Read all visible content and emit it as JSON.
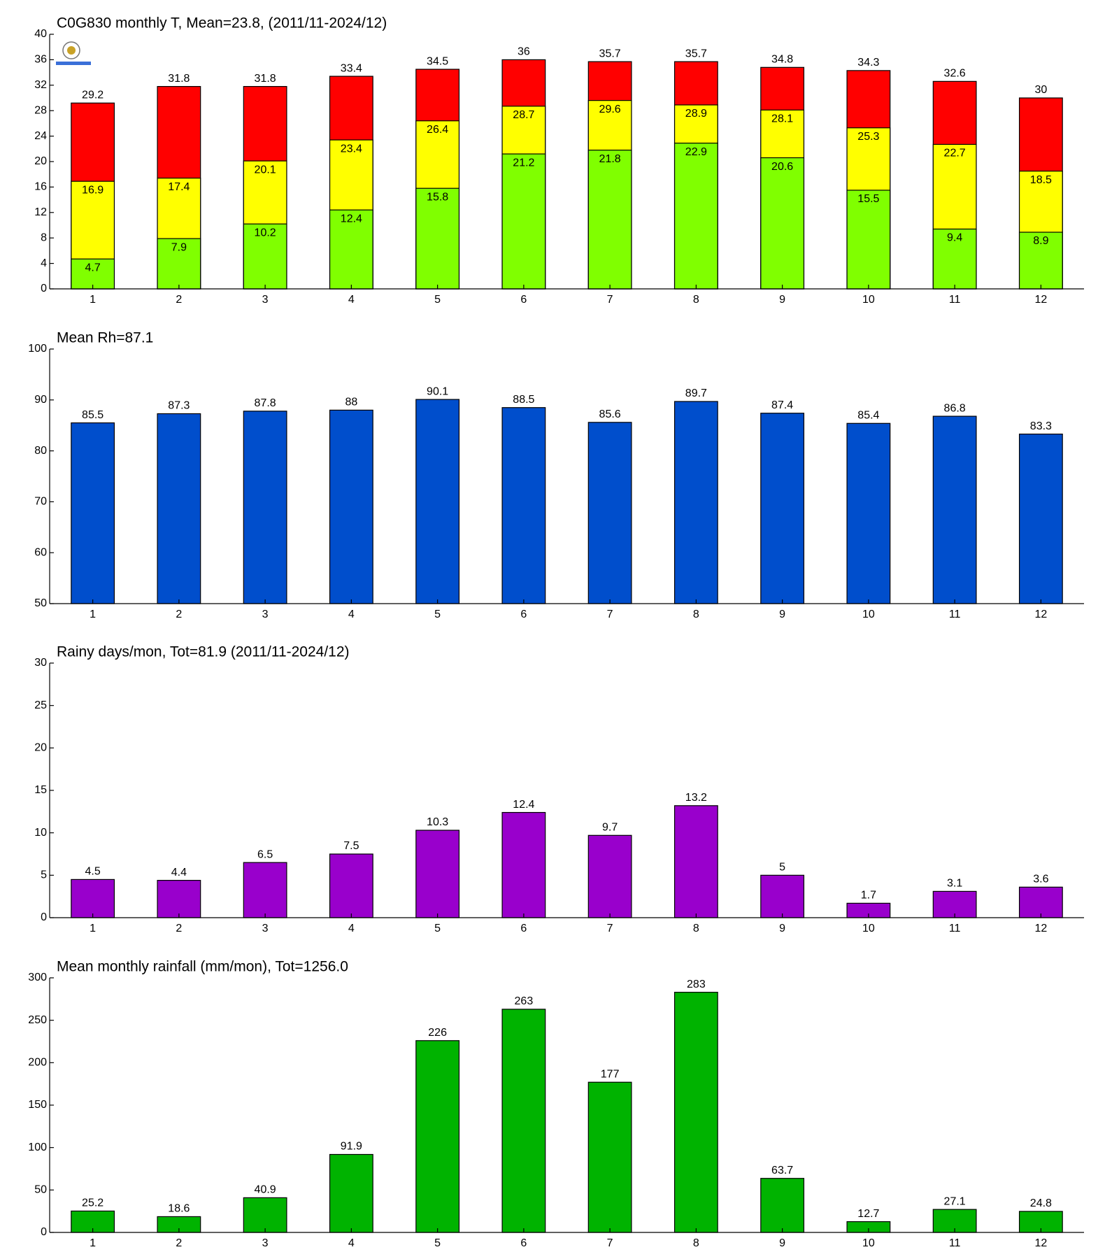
{
  "chart_data": [
    {
      "type": "overlap_bar",
      "title": "C0G830 monthly T, Mean=23.8, (2011/11-2024/12)",
      "categories": [
        "1",
        "2",
        "3",
        "4",
        "5",
        "6",
        "7",
        "8",
        "9",
        "10",
        "11",
        "12"
      ],
      "series": [
        {
          "color": "#ff0000",
          "values": [
            29.2,
            31.8,
            31.8,
            33.4,
            34.5,
            36,
            35.7,
            35.7,
            34.8,
            34.3,
            32.6,
            30
          ]
        },
        {
          "color": "#ffff00",
          "values": [
            16.9,
            17.4,
            20.1,
            23.4,
            26.4,
            28.7,
            29.6,
            28.9,
            28.1,
            25.3,
            22.7,
            18.5
          ]
        },
        {
          "color": "#80ff00",
          "values": [
            4.7,
            7.9,
            10.2,
            12.4,
            15.8,
            21.2,
            21.8,
            22.9,
            20.6,
            15.5,
            9.4,
            8.9
          ]
        }
      ],
      "ylim": [
        0,
        40
      ],
      "yticks": [
        0,
        4,
        8,
        12,
        16,
        20,
        24,
        28,
        32,
        36,
        40
      ]
    },
    {
      "type": "bar",
      "title": "Mean Rh=87.1",
      "categories": [
        "1",
        "2",
        "3",
        "4",
        "5",
        "6",
        "7",
        "8",
        "9",
        "10",
        "11",
        "12"
      ],
      "values": [
        85.5,
        87.3,
        87.8,
        88,
        90.1,
        88.5,
        85.6,
        89.7,
        87.4,
        85.4,
        86.8,
        83.3
      ],
      "color": "#004ecc",
      "ylim": [
        50,
        100
      ],
      "yticks": [
        50,
        60,
        70,
        80,
        90,
        100
      ]
    },
    {
      "type": "bar",
      "title": "Rainy days/mon, Tot=81.9 (2011/11-2024/12)",
      "categories": [
        "1",
        "2",
        "3",
        "4",
        "5",
        "6",
        "7",
        "8",
        "9",
        "10",
        "11",
        "12"
      ],
      "values": [
        4.5,
        4.4,
        6.5,
        7.5,
        10.3,
        12.4,
        9.7,
        13.2,
        5,
        1.7,
        3.1,
        3.6
      ],
      "color": "#9900cc",
      "ylim": [
        0,
        30
      ],
      "yticks": [
        0,
        5,
        10,
        15,
        20,
        25,
        30
      ]
    },
    {
      "type": "bar",
      "title": "Mean monthly rainfall (mm/mon), Tot=1256.0",
      "categories": [
        "1",
        "2",
        "3",
        "4",
        "5",
        "6",
        "7",
        "8",
        "9",
        "10",
        "11",
        "12"
      ],
      "values": [
        25.2,
        18.6,
        40.9,
        91.9,
        226,
        263,
        177,
        283,
        63.7,
        12.7,
        27.1,
        24.8
      ],
      "color": "#00b300",
      "ylim": [
        0,
        300
      ],
      "yticks": [
        0,
        50,
        100,
        150,
        200,
        250,
        300
      ]
    }
  ]
}
